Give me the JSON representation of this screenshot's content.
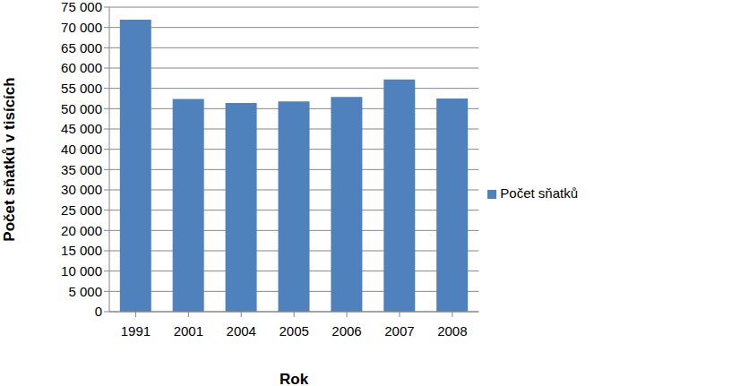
{
  "chart_data": {
    "type": "bar",
    "x_label": "Rok",
    "y_label": "Počet sňatků v tisících",
    "categories": [
      "1991",
      "2001",
      "2004",
      "2005",
      "2006",
      "2007",
      "2008"
    ],
    "series": [
      {
        "name": "Počet sňatků",
        "color": "#4f81bd",
        "values": [
          71900,
          52400,
          51400,
          51800,
          52900,
          57200,
          52500
        ]
      }
    ],
    "ylim": [
      0,
      75000
    ],
    "yticks": [
      0,
      {
        "value": 5000,
        "label": "5 000"
      },
      {
        "value": 10000,
        "label": "10 000"
      },
      {
        "value": 15000,
        "label": "15 000"
      },
      {
        "value": 20000,
        "label": "20 000"
      },
      {
        "value": 25000,
        "label": "25 000"
      },
      {
        "value": 30000,
        "label": "30 000"
      },
      {
        "value": 35000,
        "label": "35 000"
      },
      {
        "value": 40000,
        "label": "40 000"
      },
      {
        "value": 45000,
        "label": "45 000"
      },
      {
        "value": 50000,
        "label": "50 000"
      },
      {
        "value": 55000,
        "label": "55 000"
      },
      {
        "value": 60000,
        "label": "60 000"
      },
      {
        "value": 65000,
        "label": "65 000"
      },
      {
        "value": 70000,
        "label": "70 000"
      },
      {
        "value": 75000,
        "label": "75 000"
      }
    ],
    "grid": true,
    "legend": "right"
  }
}
